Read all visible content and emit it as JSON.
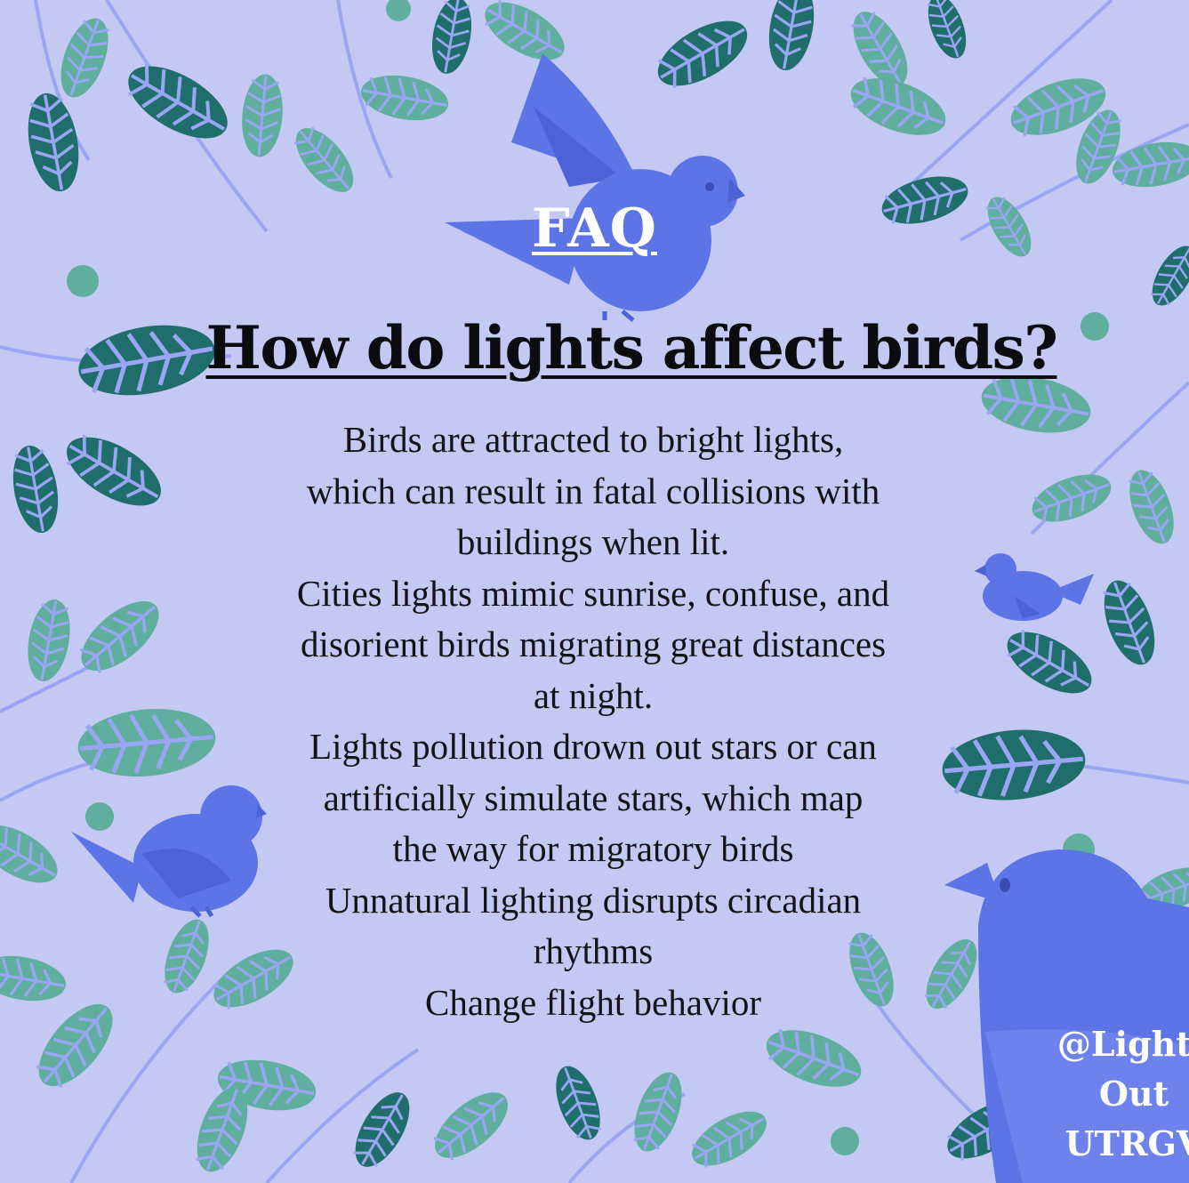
{
  "colors": {
    "background": "#c3c9f3",
    "leaf_light": "#5fae9e",
    "leaf_dark": "#1f6e6c",
    "stem": "#9aa6f4",
    "bird": "#5c74e6",
    "bird_dark": "#4d62d6",
    "text": "#141418"
  },
  "title": "FAQ",
  "question": "How do lights affect birds? ",
  "body_lines": [
    "Birds are attracted to bright lights,",
    "which can result in fatal collisions with",
    "buildings when lit.",
    "Cities lights mimic sunrise, confuse, and",
    "disorient birds migrating great distances",
    "at night.",
    "Lights pollution drown out stars or can",
    "artificially simulate stars, which map",
    "the way for migratory birds",
    "Unnatural lighting disrupts circadian",
    "rhythms",
    "Change flight behavior"
  ],
  "handle_lines": [
    "@Lights",
    "Out",
    "UTRGV"
  ],
  "icons": [
    "leaf-icon",
    "bird-icon"
  ]
}
